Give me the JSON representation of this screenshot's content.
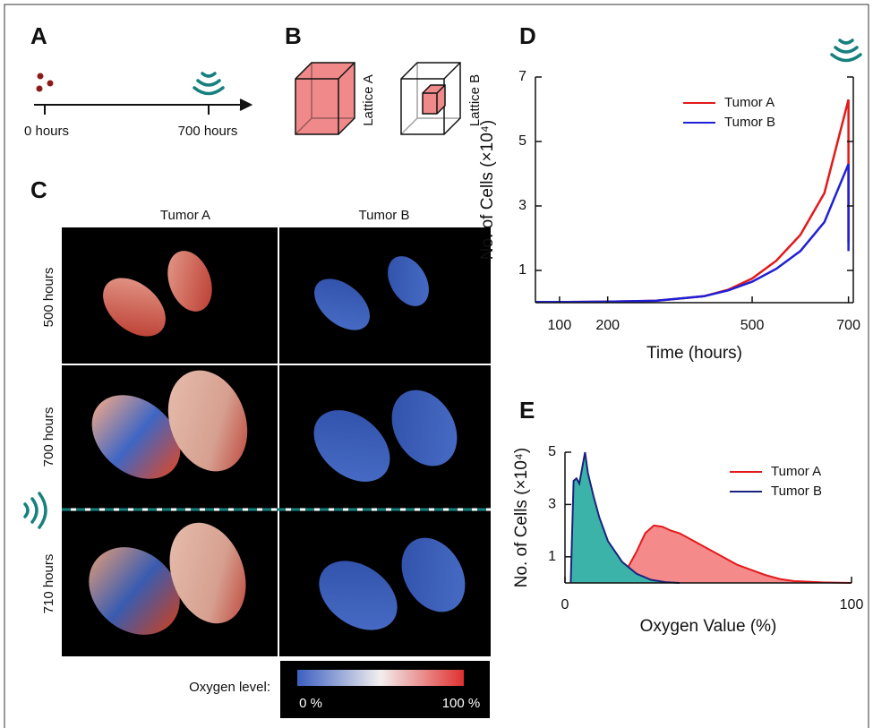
{
  "panels": {
    "a": {
      "label": "A",
      "start": "0 hours",
      "end": "700 hours"
    },
    "b": {
      "label": "B",
      "lattice_a": "Lattice A",
      "lattice_b": "Lattice B"
    },
    "c": {
      "label": "C",
      "columns": [
        "Tumor A",
        "Tumor B"
      ],
      "rows": [
        "500 hours",
        "700 hours",
        "710 hours"
      ],
      "colorbar_title": "Oxygen level:",
      "colorbar_min": "0 %",
      "colorbar_max": "100 %"
    },
    "d": {
      "label": "D"
    },
    "e": {
      "label": "E"
    }
  },
  "chart_data": [
    {
      "type": "line",
      "xlabel": "Time (hours)",
      "ylabel": "No. of Cells (×10⁴)",
      "x": [
        50,
        100,
        200,
        300,
        400,
        450,
        500,
        550,
        600,
        650,
        700,
        700
      ],
      "series": [
        {
          "name": "Tumor A",
          "color": "#e31a1c",
          "values": [
            0.02,
            0.02,
            0.03,
            0.06,
            0.2,
            0.4,
            0.75,
            1.3,
            2.1,
            3.4,
            6.3,
            1.85
          ]
        },
        {
          "name": "Tumor B",
          "color": "#1f1fd6",
          "values": [
            0.02,
            0.02,
            0.03,
            0.06,
            0.2,
            0.38,
            0.65,
            1.05,
            1.6,
            2.5,
            4.3,
            1.6
          ]
        }
      ],
      "xlim": [
        50,
        710
      ],
      "xticks": [
        100,
        200,
        500,
        700
      ],
      "ylim": [
        0,
        7
      ],
      "yticks": [
        1,
        3,
        5,
        7
      ],
      "legend": "top-right"
    },
    {
      "type": "area",
      "xlabel": "Oxygen Value (%)",
      "ylabel": "No. of Cells (×10⁴)",
      "series": [
        {
          "name": "Tumor A",
          "color": "#e31a1c",
          "fill": "#f58a8a",
          "x": [
            21,
            22,
            25,
            28,
            31,
            34,
            37,
            40,
            45,
            50,
            55,
            60,
            65,
            70,
            75,
            80,
            90,
            100
          ],
          "values": [
            0,
            0.6,
            1.2,
            1.9,
            2.2,
            2.15,
            2.0,
            1.9,
            1.6,
            1.3,
            1.0,
            0.7,
            0.5,
            0.3,
            0.15,
            0.07,
            0.02,
            0
          ]
        },
        {
          "name": "Tumor B",
          "color": "#1a237e",
          "fill": "#3bb3a8",
          "x": [
            2,
            3,
            4,
            5,
            6,
            7,
            8,
            10,
            12,
            15,
            20,
            25,
            30,
            35,
            40
          ],
          "values": [
            0,
            3.9,
            4.0,
            3.8,
            4.4,
            5.0,
            4.2,
            3.3,
            2.5,
            1.6,
            0.8,
            0.35,
            0.12,
            0.03,
            0
          ]
        }
      ],
      "xlim": [
        0,
        100
      ],
      "xticks": [
        0,
        100
      ],
      "ylim": [
        0,
        5
      ],
      "yticks": [
        1,
        3,
        5
      ],
      "legend": "top-right"
    }
  ]
}
